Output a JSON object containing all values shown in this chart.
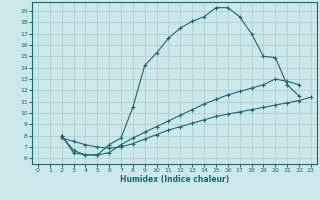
{
  "xlabel": "Humidex (Indice chaleur)",
  "bg_color": "#cce8e8",
  "line_color": "#1a6b6b",
  "grid_color": "#aacccc",
  "xlim": [
    -0.5,
    23.5
  ],
  "ylim": [
    5.5,
    19.8
  ],
  "xticks": [
    0,
    1,
    2,
    3,
    4,
    5,
    6,
    7,
    8,
    9,
    10,
    11,
    12,
    13,
    14,
    15,
    16,
    17,
    18,
    19,
    20,
    21,
    22,
    23
  ],
  "yticks": [
    6,
    7,
    8,
    9,
    10,
    11,
    12,
    13,
    14,
    15,
    16,
    17,
    18,
    19
  ],
  "curve1_x": [
    2,
    3,
    4,
    5,
    6,
    7,
    8,
    9,
    10,
    11,
    12,
    13,
    14,
    15,
    16,
    17,
    18,
    19,
    20,
    21,
    22
  ],
  "curve1_y": [
    8.0,
    6.5,
    6.3,
    6.3,
    7.2,
    7.8,
    10.5,
    14.2,
    15.3,
    16.6,
    17.5,
    18.1,
    18.5,
    19.3,
    19.3,
    18.5,
    17.0,
    15.0,
    14.9,
    12.5,
    11.5
  ],
  "curve2_x": [
    2,
    3,
    4,
    5,
    6,
    7,
    8,
    9,
    10,
    11,
    12,
    13,
    14,
    15,
    16,
    17,
    18,
    19,
    20,
    21,
    22
  ],
  "curve2_y": [
    8.0,
    6.7,
    6.3,
    6.3,
    6.5,
    7.2,
    7.8,
    8.3,
    8.8,
    9.3,
    9.8,
    10.3,
    10.8,
    11.2,
    11.6,
    11.9,
    12.2,
    12.5,
    13.0,
    12.8,
    12.5
  ],
  "curve3_x": [
    2,
    3,
    4,
    5,
    6,
    7,
    8,
    9,
    10,
    11,
    12,
    13,
    14,
    15,
    16,
    17,
    18,
    19,
    20,
    21,
    22,
    23
  ],
  "curve3_y": [
    7.8,
    7.5,
    7.2,
    7.0,
    6.9,
    7.0,
    7.3,
    7.7,
    8.1,
    8.5,
    8.8,
    9.1,
    9.4,
    9.7,
    9.9,
    10.1,
    10.3,
    10.5,
    10.7,
    10.9,
    11.1,
    11.4
  ]
}
